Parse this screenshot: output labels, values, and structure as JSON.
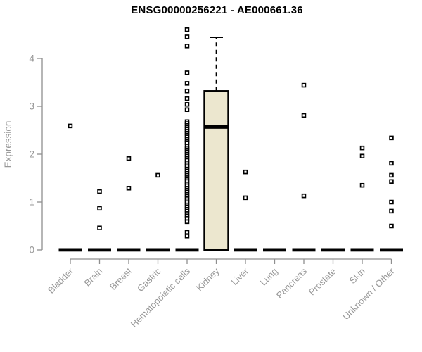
{
  "colors": {
    "box_fill": "#ece7cf",
    "box_stroke": "#000000",
    "point_stroke": "#000000",
    "point_fill": "#ffffff",
    "axis_line": "#8f8f8f",
    "axis_text": "#979797",
    "title_text": "#000000",
    "background": "#ffffff"
  },
  "chart_data": {
    "type": "boxplot",
    "title": "ENSG00000256221 - AE000661.36",
    "ylabel": "Expression",
    "xlabel": "",
    "ylim": [
      0,
      4.65
    ],
    "yticks": [
      0,
      1,
      2,
      3,
      4
    ],
    "ytick_labels": [
      "0",
      "1",
      "2",
      "3",
      "4"
    ],
    "grid": false,
    "legend": "none",
    "categories": [
      "Bladder",
      "Brain",
      "Breast",
      "Gastric",
      "Hematopoietic cells",
      "Kidney",
      "Liver",
      "Lung",
      "Pancreas",
      "Prostate",
      "Skin",
      "Unknown / Other"
    ],
    "boxes": [
      {
        "category": "Bladder",
        "median": 0,
        "collapsed": true
      },
      {
        "category": "Brain",
        "median": 0,
        "collapsed": true
      },
      {
        "category": "Breast",
        "median": 0,
        "collapsed": true
      },
      {
        "category": "Gastric",
        "median": 0,
        "collapsed": true
      },
      {
        "category": "Hematopoietic cells",
        "median": 0,
        "collapsed": true
      },
      {
        "category": "Kidney",
        "q1": 0,
        "median": 2.57,
        "q3": 3.32,
        "whisker_high": 4.44,
        "whisker_low": 0,
        "collapsed": false
      },
      {
        "category": "Liver",
        "median": 0,
        "collapsed": true
      },
      {
        "category": "Lung",
        "median": 0,
        "collapsed": true
      },
      {
        "category": "Pancreas",
        "median": 0,
        "collapsed": true
      },
      {
        "category": "Prostate",
        "median": 0,
        "collapsed": true
      },
      {
        "category": "Skin",
        "median": 0,
        "collapsed": true
      },
      {
        "category": "Unknown / Other",
        "median": 0,
        "collapsed": true
      }
    ],
    "points": {
      "Bladder": [
        2.59
      ],
      "Brain": [
        1.22,
        0.87,
        0.46
      ],
      "Breast": [
        1.91,
        1.29
      ],
      "Gastric": [
        1.56
      ],
      "Hematopoietic cells": [
        4.6,
        4.45,
        4.26,
        3.7,
        3.48,
        3.32,
        3.16,
        3.04,
        2.93,
        2.68,
        2.64,
        2.6,
        2.56,
        2.52,
        2.48,
        2.44,
        2.4,
        2.36,
        2.31,
        2.27,
        2.24,
        2.17,
        2.13,
        2.09,
        2.05,
        2.0,
        1.96,
        1.91,
        1.87,
        1.82,
        1.78,
        1.74,
        1.69,
        1.65,
        1.6,
        1.56,
        1.51,
        1.47,
        1.43,
        1.38,
        1.34,
        1.29,
        1.25,
        1.21,
        1.16,
        1.12,
        1.07,
        1.03,
        0.99,
        0.94,
        0.9,
        0.85,
        0.81,
        0.76,
        0.71,
        0.66,
        0.59,
        0.37,
        0.29
      ],
      "Kidney": [],
      "Liver": [
        1.63,
        1.09
      ],
      "Lung": [],
      "Pancreas": [
        3.44,
        2.81,
        1.13
      ],
      "Prostate": [],
      "Skin": [
        2.13,
        1.96,
        1.35
      ],
      "Unknown / Other": [
        2.34,
        1.81,
        1.56,
        1.43,
        1.0,
        0.81,
        0.5
      ]
    }
  }
}
